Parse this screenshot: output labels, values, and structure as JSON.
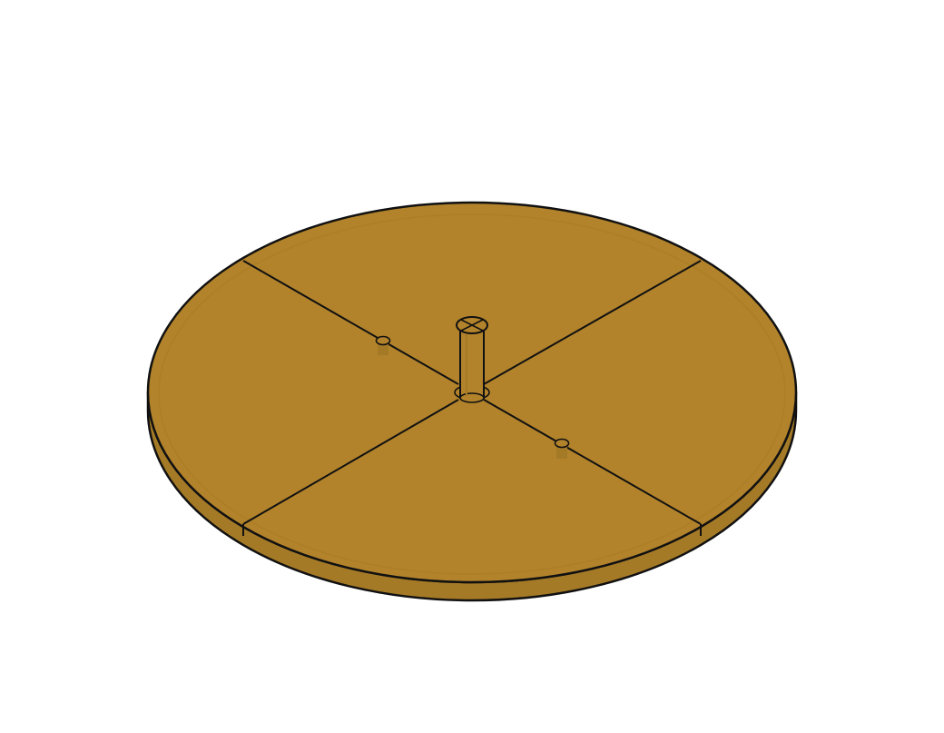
{
  "model": {
    "colors": {
      "background": "#ffffff",
      "top_face": "#b2832b",
      "side_face": "#a57a27",
      "inner_ring": "#a77a22",
      "outline": "#111111",
      "post_face": "#b2832b"
    },
    "segments_count": 4,
    "holes_count": 2,
    "center_post": true
  }
}
